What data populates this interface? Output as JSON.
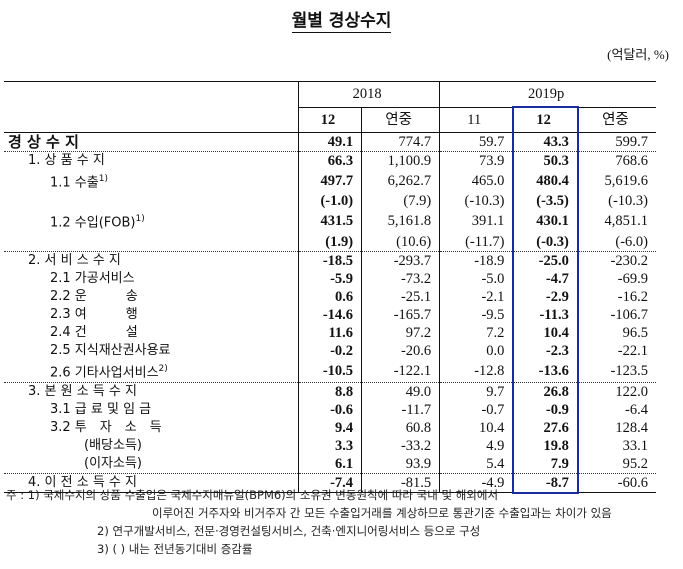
{
  "title": "월별 경상수지",
  "unit": "(억달러, %)",
  "header": {
    "years": [
      "2018",
      "2019p"
    ],
    "cols": [
      "12",
      "연중",
      "11",
      "12",
      "연중"
    ]
  },
  "highlight_color": "#1a2aa0",
  "rows": [
    {
      "label": "경 상 수 지",
      "sup": "",
      "indent": 0,
      "bold_label": true,
      "values": [
        "49.1",
        "774.7",
        "59.7",
        "43.3",
        "599.7"
      ],
      "sep": "dot"
    },
    {
      "label": "1. 상 품 수 지",
      "sup": "",
      "indent": 1,
      "values": [
        "66.3",
        "1,100.9",
        "73.9",
        "50.3",
        "768.6"
      ]
    },
    {
      "label": "1.1 수출",
      "sup": "1)",
      "indent": 2,
      "values": [
        "497.7",
        "6,262.7",
        "465.0",
        "480.4",
        "5,619.6"
      ]
    },
    {
      "label": "",
      "sup": "",
      "indent": 2,
      "values": [
        "(-1.0)",
        "(7.9)",
        "(-10.3)",
        "(-3.5)",
        "(-10.3)"
      ]
    },
    {
      "label": "1.2 수입(FOB)",
      "sup": "1)",
      "indent": 2,
      "values": [
        "431.5",
        "5,161.8",
        "391.1",
        "430.1",
        "4,851.1"
      ]
    },
    {
      "label": "",
      "sup": "",
      "indent": 2,
      "values": [
        "(1.9)",
        "(10.6)",
        "(-11.7)",
        "(-0.3)",
        "(-6.0)"
      ],
      "sep": "dot"
    },
    {
      "label": "2. 서 비 스 수 지",
      "sup": "",
      "indent": 1,
      "values": [
        "-18.5",
        "-293.7",
        "-18.9",
        "-25.0",
        "-230.2"
      ]
    },
    {
      "label": "2.1 가공서비스",
      "sup": "",
      "indent": 2,
      "values": [
        "-5.9",
        "-73.2",
        "-5.0",
        "-4.7",
        "-69.9"
      ]
    },
    {
      "label": "2.2 운　　　송",
      "sup": "",
      "indent": 2,
      "values": [
        "0.6",
        "-25.1",
        "-2.1",
        "-2.9",
        "-16.2"
      ]
    },
    {
      "label": "2.3 여　　　행",
      "sup": "",
      "indent": 2,
      "values": [
        "-14.6",
        "-165.7",
        "-9.5",
        "-11.3",
        "-106.7"
      ]
    },
    {
      "label": "2.4 건　　　설",
      "sup": "",
      "indent": 2,
      "values": [
        "11.6",
        "97.2",
        "7.2",
        "10.4",
        "96.5"
      ]
    },
    {
      "label": "2.5 지식재산권사용료",
      "sup": "",
      "indent": 2,
      "values": [
        "-0.2",
        "-20.6",
        "0.0",
        "-2.3",
        "-22.1"
      ]
    },
    {
      "label": "2.6 기타사업서비스",
      "sup": "2)",
      "indent": 2,
      "values": [
        "-10.5",
        "-122.1",
        "-12.8",
        "-13.6",
        "-123.5"
      ],
      "sep": "dot"
    },
    {
      "label": "3. 본 원 소 득 수 지",
      "sup": "",
      "indent": 1,
      "values": [
        "8.8",
        "49.0",
        "9.7",
        "26.8",
        "122.0"
      ]
    },
    {
      "label": "3.1 급 료 및 임 금",
      "sup": "",
      "indent": 2,
      "values": [
        "-0.6",
        "-11.7",
        "-0.7",
        "-0.9",
        "-6.4"
      ]
    },
    {
      "label": "3.2 투　자　소　득",
      "sup": "",
      "indent": 2,
      "values": [
        "9.4",
        "60.8",
        "10.4",
        "27.6",
        "128.4"
      ]
    },
    {
      "label": "(배당소득)",
      "sup": "",
      "indent": 3,
      "values": [
        "3.3",
        "-33.2",
        "4.9",
        "19.8",
        "33.1"
      ]
    },
    {
      "label": "(이자소득)",
      "sup": "",
      "indent": 3,
      "values": [
        "6.1",
        "93.9",
        "5.4",
        "7.9",
        "95.2"
      ],
      "sep": "dot"
    },
    {
      "label": "4. 이 전 소 득 수 지",
      "sup": "",
      "indent": 1,
      "values": [
        "-7.4",
        "-81.5",
        "-4.9",
        "-8.7",
        "-60.6"
      ],
      "sep": "last"
    }
  ],
  "notes": [
    "주 : 1) 국제수지의 상품 수출입은 국제수지매뉴얼(BPM6)의 소유권 변동원칙에 따라 국내 및 해외에서",
    "이루어진 거주자와 비거주자 간 모든 수출입거래를 계상하므로 통관기준 수출입과는 차이가 있음",
    "2) 연구개발서비스, 전문·경영컨설팅서비스, 건축·엔지니어링서비스 등으로 구성",
    "3) (  ) 내는 전년동기대비 증감률"
  ]
}
